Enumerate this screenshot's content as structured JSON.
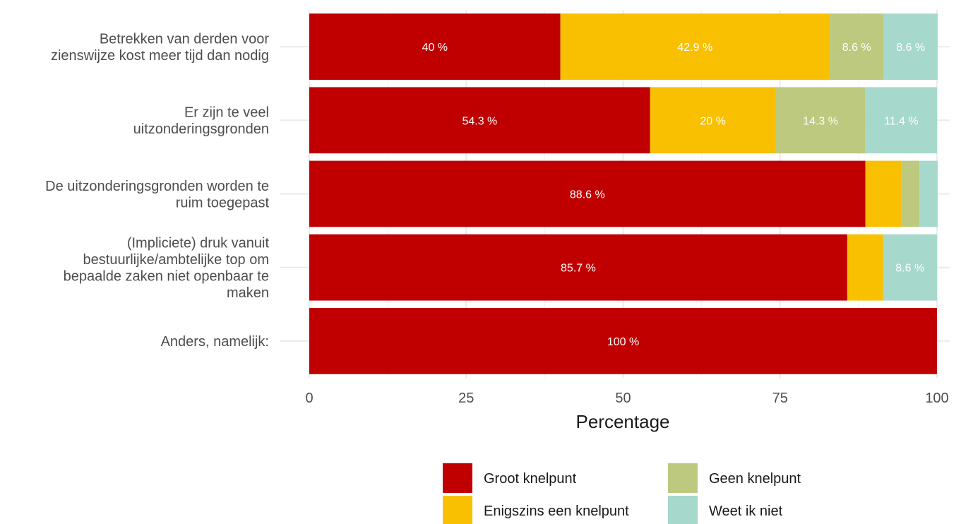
{
  "chart_data": {
    "type": "bar",
    "orientation": "horizontal",
    "stacked": true,
    "categories": [
      [
        "Betrekken van derden voor",
        "zienswijze kost meer tijd dan nodig"
      ],
      [
        "Er zijn te veel",
        "uitzonderingsgronden"
      ],
      [
        "De uitzonderingsgronden worden te",
        "ruim toegepast"
      ],
      [
        "(Impliciete) druk vanuit",
        "bestuurlijke/ambtelijke top om",
        "bepaalde zaken niet openbaar te",
        "maken"
      ],
      [
        "Anders, namelijk:"
      ]
    ],
    "series": [
      {
        "name": "Groot knelpunt",
        "color": "#c00000",
        "values": [
          40,
          54.3,
          88.6,
          85.7,
          100
        ],
        "labels": [
          "40 %",
          "54.3 %",
          "88.6 %",
          "85.7 %",
          "100 %"
        ]
      },
      {
        "name": "Enigszins een knelpunt",
        "color": "#f8c000",
        "values": [
          42.9,
          20,
          5.7,
          5.7,
          0
        ],
        "labels": [
          "42.9 %",
          "20 %",
          "",
          "",
          ""
        ]
      },
      {
        "name": "Geen knelpunt",
        "color": "#bcc97e",
        "values": [
          8.6,
          14.3,
          2.9,
          0,
          0
        ],
        "labels": [
          "8.6 %",
          "14.3 %",
          "",
          "",
          ""
        ]
      },
      {
        "name": "Weet ik niet",
        "color": "#a6d8cc",
        "values": [
          8.6,
          11.4,
          2.9,
          8.6,
          0
        ],
        "labels": [
          "8.6 %",
          "11.4 %",
          "",
          "8.6 %",
          ""
        ]
      }
    ],
    "xlabel": "Percentage",
    "ylabel": "",
    "xlim": [
      0,
      100
    ],
    "xticks": [
      0,
      25,
      50,
      75,
      100
    ],
    "grid": true,
    "legend_position": "bottom"
  }
}
